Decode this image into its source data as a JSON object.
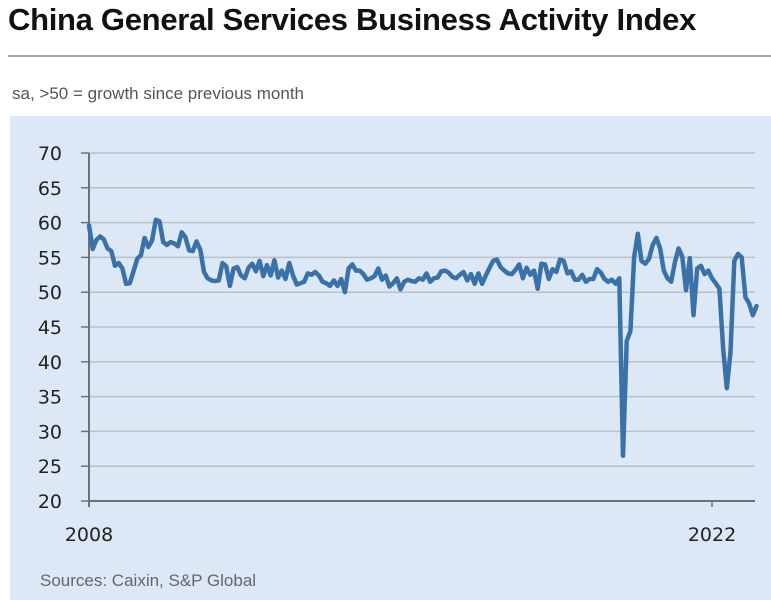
{
  "header": {
    "title": "China General Services Business Activity Index",
    "subtitle": "sa, >50 = growth since previous month"
  },
  "footer": {
    "source": "Sources: Caixin, S&P Global"
  },
  "colors": {
    "line": "#3a72a8",
    "panel_bg": "#dde8f6",
    "grid": "#b8c0c8",
    "axis": "#6b7278"
  },
  "chart_data": {
    "type": "line",
    "title": "China General Services Business Activity Index",
    "subtitle": "sa, >50 = growth since previous month",
    "xlabel": "",
    "ylabel": "",
    "ylim": [
      20,
      70
    ],
    "yticks": [
      "20",
      "25",
      "30",
      "35",
      "40",
      "45",
      "50",
      "55",
      "60",
      "65",
      "70"
    ],
    "xticks": [
      "2008",
      "2022"
    ],
    "x_range": [
      "2008-01",
      "2022-10"
    ],
    "grid": true,
    "legend": "none",
    "series": [
      {
        "name": "Services Business Activity Index",
        "frequency": "monthly",
        "start": "2008-01",
        "values": [
          59.6,
          56.2,
          57.5,
          58.0,
          57.6,
          56.3,
          55.9,
          53.8,
          54.2,
          53.4,
          51.2,
          51.3,
          53.0,
          54.8,
          55.3,
          57.8,
          56.5,
          57.4,
          60.4,
          60.2,
          57.2,
          56.8,
          57.2,
          57.0,
          56.6,
          58.6,
          57.9,
          56.0,
          55.9,
          57.3,
          56.1,
          52.9,
          52.0,
          51.7,
          51.6,
          51.7,
          54.2,
          53.7,
          50.9,
          53.4,
          53.6,
          52.4,
          52.0,
          53.5,
          54.1,
          53.0,
          54.5,
          52.3,
          53.9,
          52.4,
          54.6,
          52.1,
          53.1,
          51.9,
          54.2,
          52.4,
          51.1,
          51.3,
          51.5,
          52.7,
          52.5,
          52.9,
          52.4,
          51.5,
          51.3,
          50.9,
          51.7,
          50.9,
          51.9,
          50.0,
          53.4,
          54.0,
          53.1,
          53.1,
          52.6,
          51.8,
          52.0,
          52.3,
          53.4,
          51.8,
          52.4,
          50.8,
          51.3,
          52.0,
          50.4,
          51.5,
          51.8,
          51.6,
          51.5,
          52.0,
          51.8,
          52.7,
          51.5,
          52.0,
          52.1,
          53.0,
          53.1,
          52.8,
          52.2,
          52.0,
          52.5,
          52.9,
          51.7,
          52.6,
          51.2,
          52.7,
          51.2,
          52.4,
          53.5,
          54.5,
          54.7,
          53.6,
          53.1,
          52.7,
          52.6,
          53.2,
          54.0,
          52.0,
          53.5,
          52.5,
          53.1,
          50.5,
          54.1,
          54.0,
          51.9,
          53.3,
          52.9,
          54.7,
          54.5,
          52.7,
          53.0,
          51.8,
          51.8,
          52.5,
          51.5,
          51.9,
          51.9,
          53.3,
          52.8,
          51.9,
          51.5,
          51.8,
          51.2,
          52.0,
          26.5,
          43.0,
          44.4,
          55.0,
          58.4,
          54.5,
          54.1,
          54.8,
          56.8,
          57.8,
          56.3,
          53.1,
          52.0,
          51.5,
          54.3,
          56.3,
          55.1,
          50.3,
          54.9,
          46.7,
          53.4,
          53.8,
          52.6,
          53.1,
          52.0,
          51.3,
          50.5,
          42.0,
          36.2,
          41.4,
          54.5,
          55.5,
          55.0,
          49.3,
          48.4,
          46.7,
          48.0
        ]
      }
    ]
  }
}
